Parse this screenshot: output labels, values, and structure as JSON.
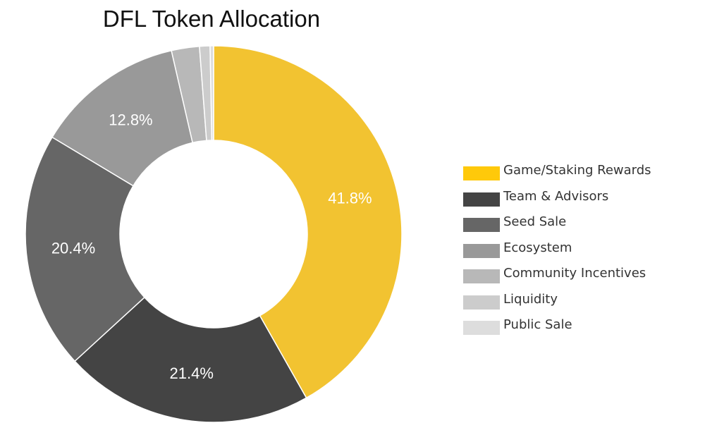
{
  "chart_data": {
    "type": "pie",
    "donut": true,
    "title": "DFL Token Allocation",
    "categories": [
      "Game/Staking Rewards",
      "Team & Advisors",
      "Seed Sale",
      "Ecosystem",
      "Community Incentives",
      "Liquidity",
      "Public Sale"
    ],
    "values": [
      41.8,
      21.4,
      20.4,
      12.8,
      2.4,
      0.9,
      0.3
    ],
    "data_labels": [
      "41.8%",
      "21.4%",
      "20.4%",
      "12.8%",
      "",
      "",
      ""
    ],
    "colors": [
      "#F2C331",
      "#444444",
      "#666666",
      "#999999",
      "#B8B8B8",
      "#CCCCCC",
      "#DDDDDD"
    ],
    "legend_colors": [
      "#FFC90A",
      "#444444",
      "#666666",
      "#999999",
      "#B8B8B8",
      "#CCCCCC",
      "#DDDDDD"
    ],
    "legend_position": "right",
    "start_angle": "top",
    "direction": "clockwise"
  }
}
